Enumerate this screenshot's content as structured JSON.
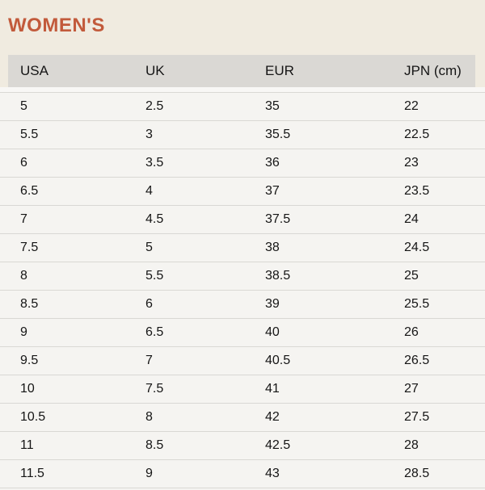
{
  "page": {
    "title": "WOMEN'S"
  },
  "colors": {
    "title": "#c25a3b",
    "page_bg": "#f0ebe0",
    "header_bg": "#dad8d4",
    "row_bg": "#f5f4f1",
    "gap_bg": "#f8f7f5",
    "divider": "#d9d8d4",
    "text": "#151515"
  },
  "table": {
    "columns": [
      "USA",
      "UK",
      "EUR",
      "JPN (cm)"
    ],
    "rows": [
      [
        "5",
        "2.5",
        "35",
        "22"
      ],
      [
        "5.5",
        "3",
        "35.5",
        "22.5"
      ],
      [
        "6",
        "3.5",
        "36",
        "23"
      ],
      [
        "6.5",
        "4",
        "37",
        "23.5"
      ],
      [
        "7",
        "4.5",
        "37.5",
        "24"
      ],
      [
        "7.5",
        "5",
        "38",
        "24.5"
      ],
      [
        "8",
        "5.5",
        "38.5",
        "25"
      ],
      [
        "8.5",
        "6",
        "39",
        "25.5"
      ],
      [
        "9",
        "6.5",
        "40",
        "26"
      ],
      [
        "9.5",
        "7",
        "40.5",
        "26.5"
      ],
      [
        "10",
        "7.5",
        "41",
        "27"
      ],
      [
        "10.5",
        "8",
        "42",
        "27.5"
      ],
      [
        "11",
        "8.5",
        "42.5",
        "28"
      ],
      [
        "11.5",
        "9",
        "43",
        "28.5"
      ]
    ]
  }
}
